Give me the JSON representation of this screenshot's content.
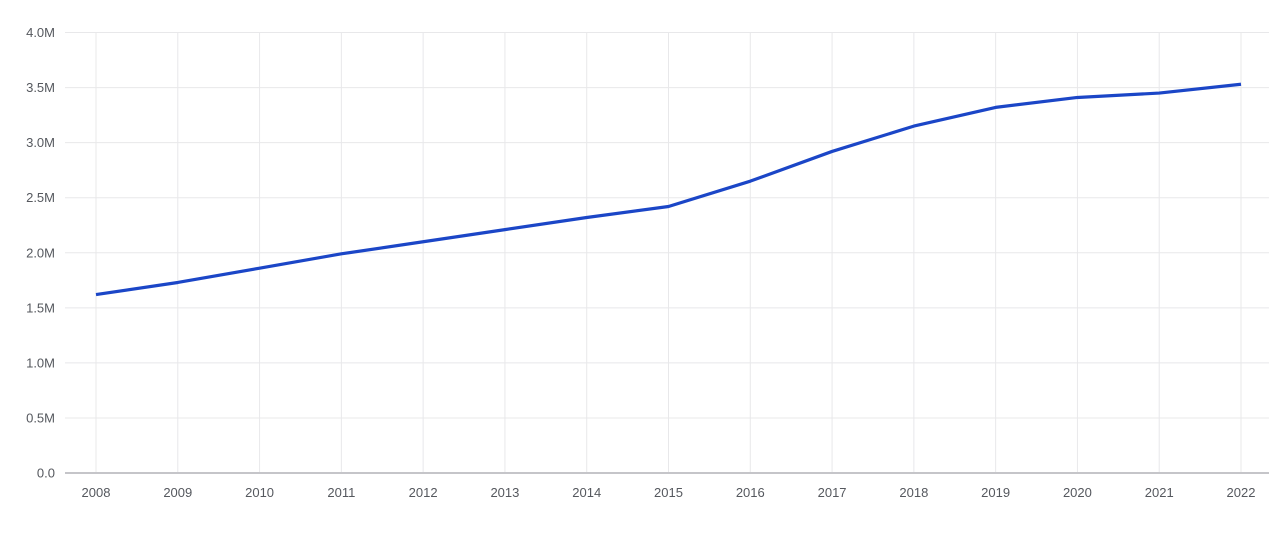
{
  "page": {
    "background_color": "#ffffff"
  },
  "colors": {
    "series_line": "#1b46c7",
    "gridline": "#e8e8ea",
    "axis_line": "#c5c5c9",
    "tick_text": "#55585e"
  },
  "chart_data": {
    "type": "line",
    "title": "",
    "xlabel": "",
    "ylabel": "",
    "categories": [
      "2008",
      "2009",
      "2010",
      "2011",
      "2012",
      "2013",
      "2014",
      "2015",
      "2016",
      "2017",
      "2018",
      "2019",
      "2020",
      "2021",
      "2022"
    ],
    "series": [
      {
        "name": "value",
        "unit": "M",
        "values": [
          1.62,
          1.73,
          1.86,
          1.99,
          2.1,
          2.21,
          2.32,
          2.42,
          2.65,
          2.92,
          3.15,
          3.32,
          3.41,
          3.45,
          3.53
        ]
      }
    ],
    "ylim": [
      0,
      4
    ],
    "y_ticks": [
      0,
      0.5,
      1,
      1.5,
      2,
      2.5,
      3,
      3.5,
      4
    ],
    "y_tick_labels": [
      "0.0",
      "0.5M",
      "1.0M",
      "1.5M",
      "2.0M",
      "2.5M",
      "3.0M",
      "3.5M",
      "4.0M"
    ],
    "grid": true,
    "legend": "none"
  }
}
